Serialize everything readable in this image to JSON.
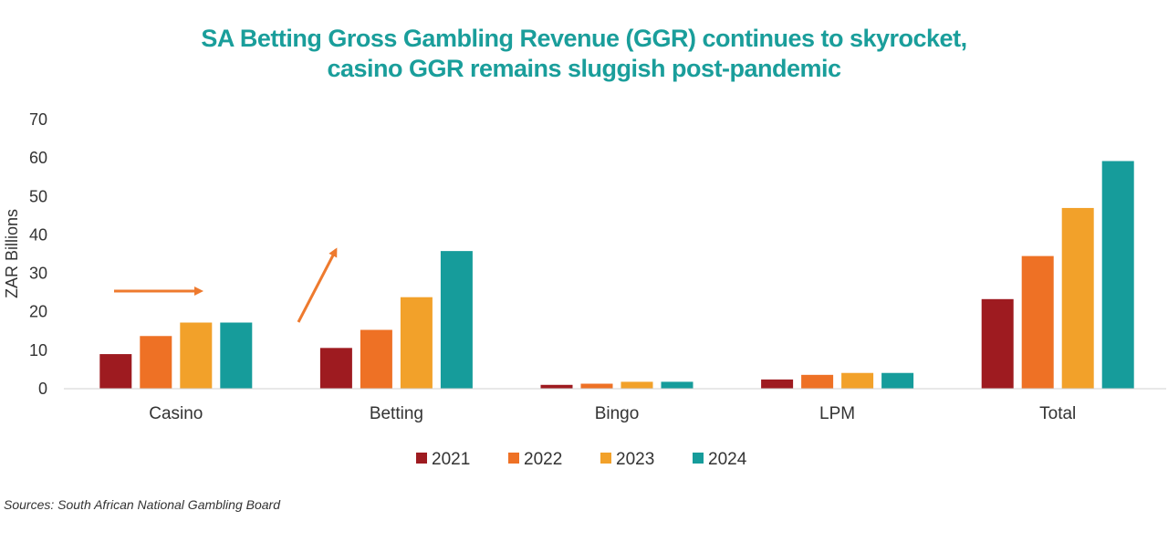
{
  "title_lines": [
    "SA Betting Gross Gambling Revenue (GGR) continues to skyrocket,",
    "casino GGR remains sluggish post-pandemic"
  ],
  "source": "Sources: South African National Gambling Board",
  "colors": {
    "title": "#1a9e9b",
    "arrow": "#ee7a2e",
    "series": [
      "#9e1b20",
      "#ee7125",
      "#f2a12a",
      "#169c9b"
    ]
  },
  "chart_data": {
    "type": "bar",
    "title": "SA Betting Gross Gambling Revenue (GGR) continues to skyrocket, casino GGR remains sluggish post-pandemic",
    "ylabel": "ZAR Billions",
    "xlabel": "",
    "ylim": [
      0,
      70
    ],
    "yticks": [
      0,
      10,
      20,
      30,
      40,
      50,
      60,
      70
    ],
    "grid": false,
    "legend": "bottom",
    "categories": [
      "Casino",
      "Betting",
      "Bingo",
      "LPM",
      "Total"
    ],
    "series": [
      {
        "name": "2021",
        "values": [
          9.0,
          10.6,
          1.0,
          2.4,
          23.3
        ]
      },
      {
        "name": "2022",
        "values": [
          13.7,
          15.3,
          1.3,
          3.6,
          34.5
        ]
      },
      {
        "name": "2023",
        "values": [
          17.2,
          23.8,
          1.8,
          4.1,
          47.0
        ]
      },
      {
        "name": "2024",
        "values": [
          17.2,
          35.8,
          1.8,
          4.1,
          59.2
        ]
      }
    ]
  }
}
